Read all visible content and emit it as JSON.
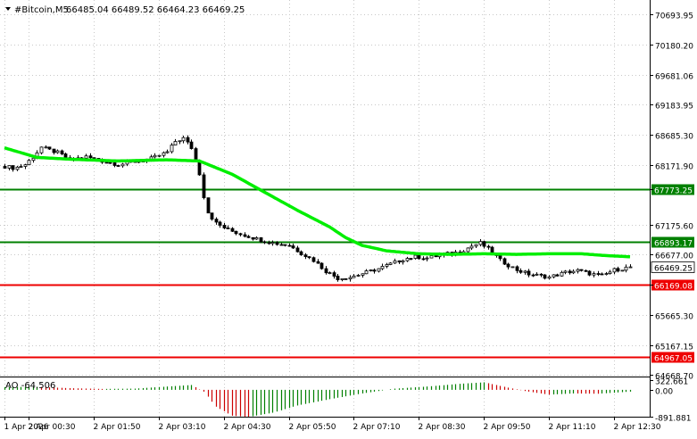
{
  "header": {
    "symbol_label": "#Bitcoin,M5",
    "ohlc_label": "66485.04 66489.52 66464.23 66469.25"
  },
  "colors": {
    "background": "#ffffff",
    "grid": "#c8c8c8",
    "axis": "#000000",
    "candle": "#000000",
    "ma": "#00ee00",
    "level_green": "#008000",
    "level_red": "#ee0000",
    "price_tag_current_bg": "#ffffff",
    "ao_up": "#008000",
    "ao_down": "#cc0000",
    "text": "#000000"
  },
  "chart_data": [
    {
      "type": "candlestick",
      "title": "#Bitcoin,M5",
      "ylim": [
        64668.7,
        70900
      ],
      "grid": true,
      "y_tick_labels": [
        "70693.95",
        "70180.20",
        "69681.06",
        "69183.95",
        "68685.30",
        "68171.90",
        "67773.25",
        "67175.60",
        "66677.00",
        "66169.08",
        "65665.30",
        "65167.15",
        "64668.70"
      ],
      "x_tick_labels": [
        "1 Apr 2026",
        "2 Apr 00:30",
        "2 Apr 01:50",
        "2 Apr 03:10",
        "2 Apr 04:30",
        "2 Apr 05:50",
        "2 Apr 07:10",
        "2 Apr 08:30",
        "2 Apr 09:50",
        "2 Apr 11:10",
        "2 Apr 12:30"
      ],
      "x_tick_times": [
        0,
        30,
        110,
        190,
        270,
        350,
        430,
        510,
        590,
        670,
        750
      ],
      "bar_minutes": 5,
      "keypoints": [
        [
          0,
          68150
        ],
        [
          12,
          68120
        ],
        [
          25,
          68180
        ],
        [
          36,
          68320
        ],
        [
          45,
          68470
        ],
        [
          55,
          68420
        ],
        [
          65,
          68380
        ],
        [
          80,
          68260
        ],
        [
          100,
          68310
        ],
        [
          120,
          68240
        ],
        [
          140,
          68180
        ],
        [
          160,
          68230
        ],
        [
          180,
          68280
        ],
        [
          200,
          68390
        ],
        [
          210,
          68570
        ],
        [
          220,
          68620
        ],
        [
          230,
          68460
        ],
        [
          240,
          68030
        ],
        [
          248,
          67420
        ],
        [
          260,
          67200
        ],
        [
          275,
          67090
        ],
        [
          290,
          67020
        ],
        [
          305,
          66960
        ],
        [
          320,
          66900
        ],
        [
          335,
          66860
        ],
        [
          350,
          66830
        ],
        [
          365,
          66700
        ],
        [
          380,
          66580
        ],
        [
          395,
          66400
        ],
        [
          410,
          66280
        ],
        [
          425,
          66300
        ],
        [
          440,
          66360
        ],
        [
          460,
          66440
        ],
        [
          475,
          66520
        ],
        [
          490,
          66600
        ],
        [
          505,
          66640
        ],
        [
          520,
          66620
        ],
        [
          540,
          66680
        ],
        [
          560,
          66720
        ],
        [
          575,
          66820
        ],
        [
          585,
          66870
        ],
        [
          595,
          66770
        ],
        [
          610,
          66580
        ],
        [
          630,
          66420
        ],
        [
          645,
          66350
        ],
        [
          660,
          66320
        ],
        [
          670,
          66300
        ],
        [
          690,
          66380
        ],
        [
          705,
          66410
        ],
        [
          720,
          66360
        ],
        [
          735,
          66320
        ],
        [
          750,
          66420
        ],
        [
          760,
          66440
        ],
        [
          770,
          66470
        ]
      ],
      "series": [
        {
          "name": "",
          "type": "moving_average",
          "keypoints": [
            [
              0,
              68460
            ],
            [
              40,
              68300
            ],
            [
              80,
              68270
            ],
            [
              140,
              68240
            ],
            [
              200,
              68260
            ],
            [
              240,
              68240
            ],
            [
              280,
              68020
            ],
            [
              320,
              67720
            ],
            [
              360,
              67420
            ],
            [
              400,
              67140
            ],
            [
              420,
              66960
            ],
            [
              440,
              66830
            ],
            [
              470,
              66740
            ],
            [
              510,
              66690
            ],
            [
              550,
              66680
            ],
            [
              590,
              66690
            ],
            [
              630,
              66680
            ],
            [
              670,
              66690
            ],
            [
              710,
              66690
            ],
            [
              740,
              66660
            ],
            [
              770,
              66640
            ]
          ]
        }
      ],
      "horizontal_levels": [
        {
          "price": 67773.25,
          "label": "67773.25",
          "color": "#008000"
        },
        {
          "price": 66893.17,
          "label": "66893.17",
          "color": "#008000"
        },
        {
          "price": 66169.08,
          "label": "66169.08",
          "color": "#ee0000"
        },
        {
          "price": 64967.05,
          "label": "64967.05",
          "color": "#ee0000"
        }
      ],
      "current_price": {
        "price": 66469.25,
        "label": "66469.25"
      }
    },
    {
      "type": "bar",
      "title": "AO -64.506",
      "indicator_label": "AO",
      "indicator_value": "-64.506",
      "ylim": [
        -891.881,
        322.661
      ],
      "y_tick_labels": [
        "322.661",
        "0.00",
        "-891.881"
      ],
      "keypoints": [
        [
          0,
          90
        ],
        [
          40,
          100
        ],
        [
          80,
          55
        ],
        [
          120,
          30
        ],
        [
          160,
          40
        ],
        [
          200,
          110
        ],
        [
          230,
          160
        ],
        [
          245,
          -60
        ],
        [
          260,
          -560
        ],
        [
          280,
          -860
        ],
        [
          300,
          -900
        ],
        [
          330,
          -760
        ],
        [
          360,
          -520
        ],
        [
          400,
          -310
        ],
        [
          440,
          -120
        ],
        [
          480,
          40
        ],
        [
          520,
          110
        ],
        [
          560,
          200
        ],
        [
          590,
          250
        ],
        [
          610,
          130
        ],
        [
          640,
          -40
        ],
        [
          670,
          -160
        ],
        [
          700,
          -120
        ],
        [
          730,
          -130
        ],
        [
          770,
          -60
        ]
      ]
    }
  ]
}
